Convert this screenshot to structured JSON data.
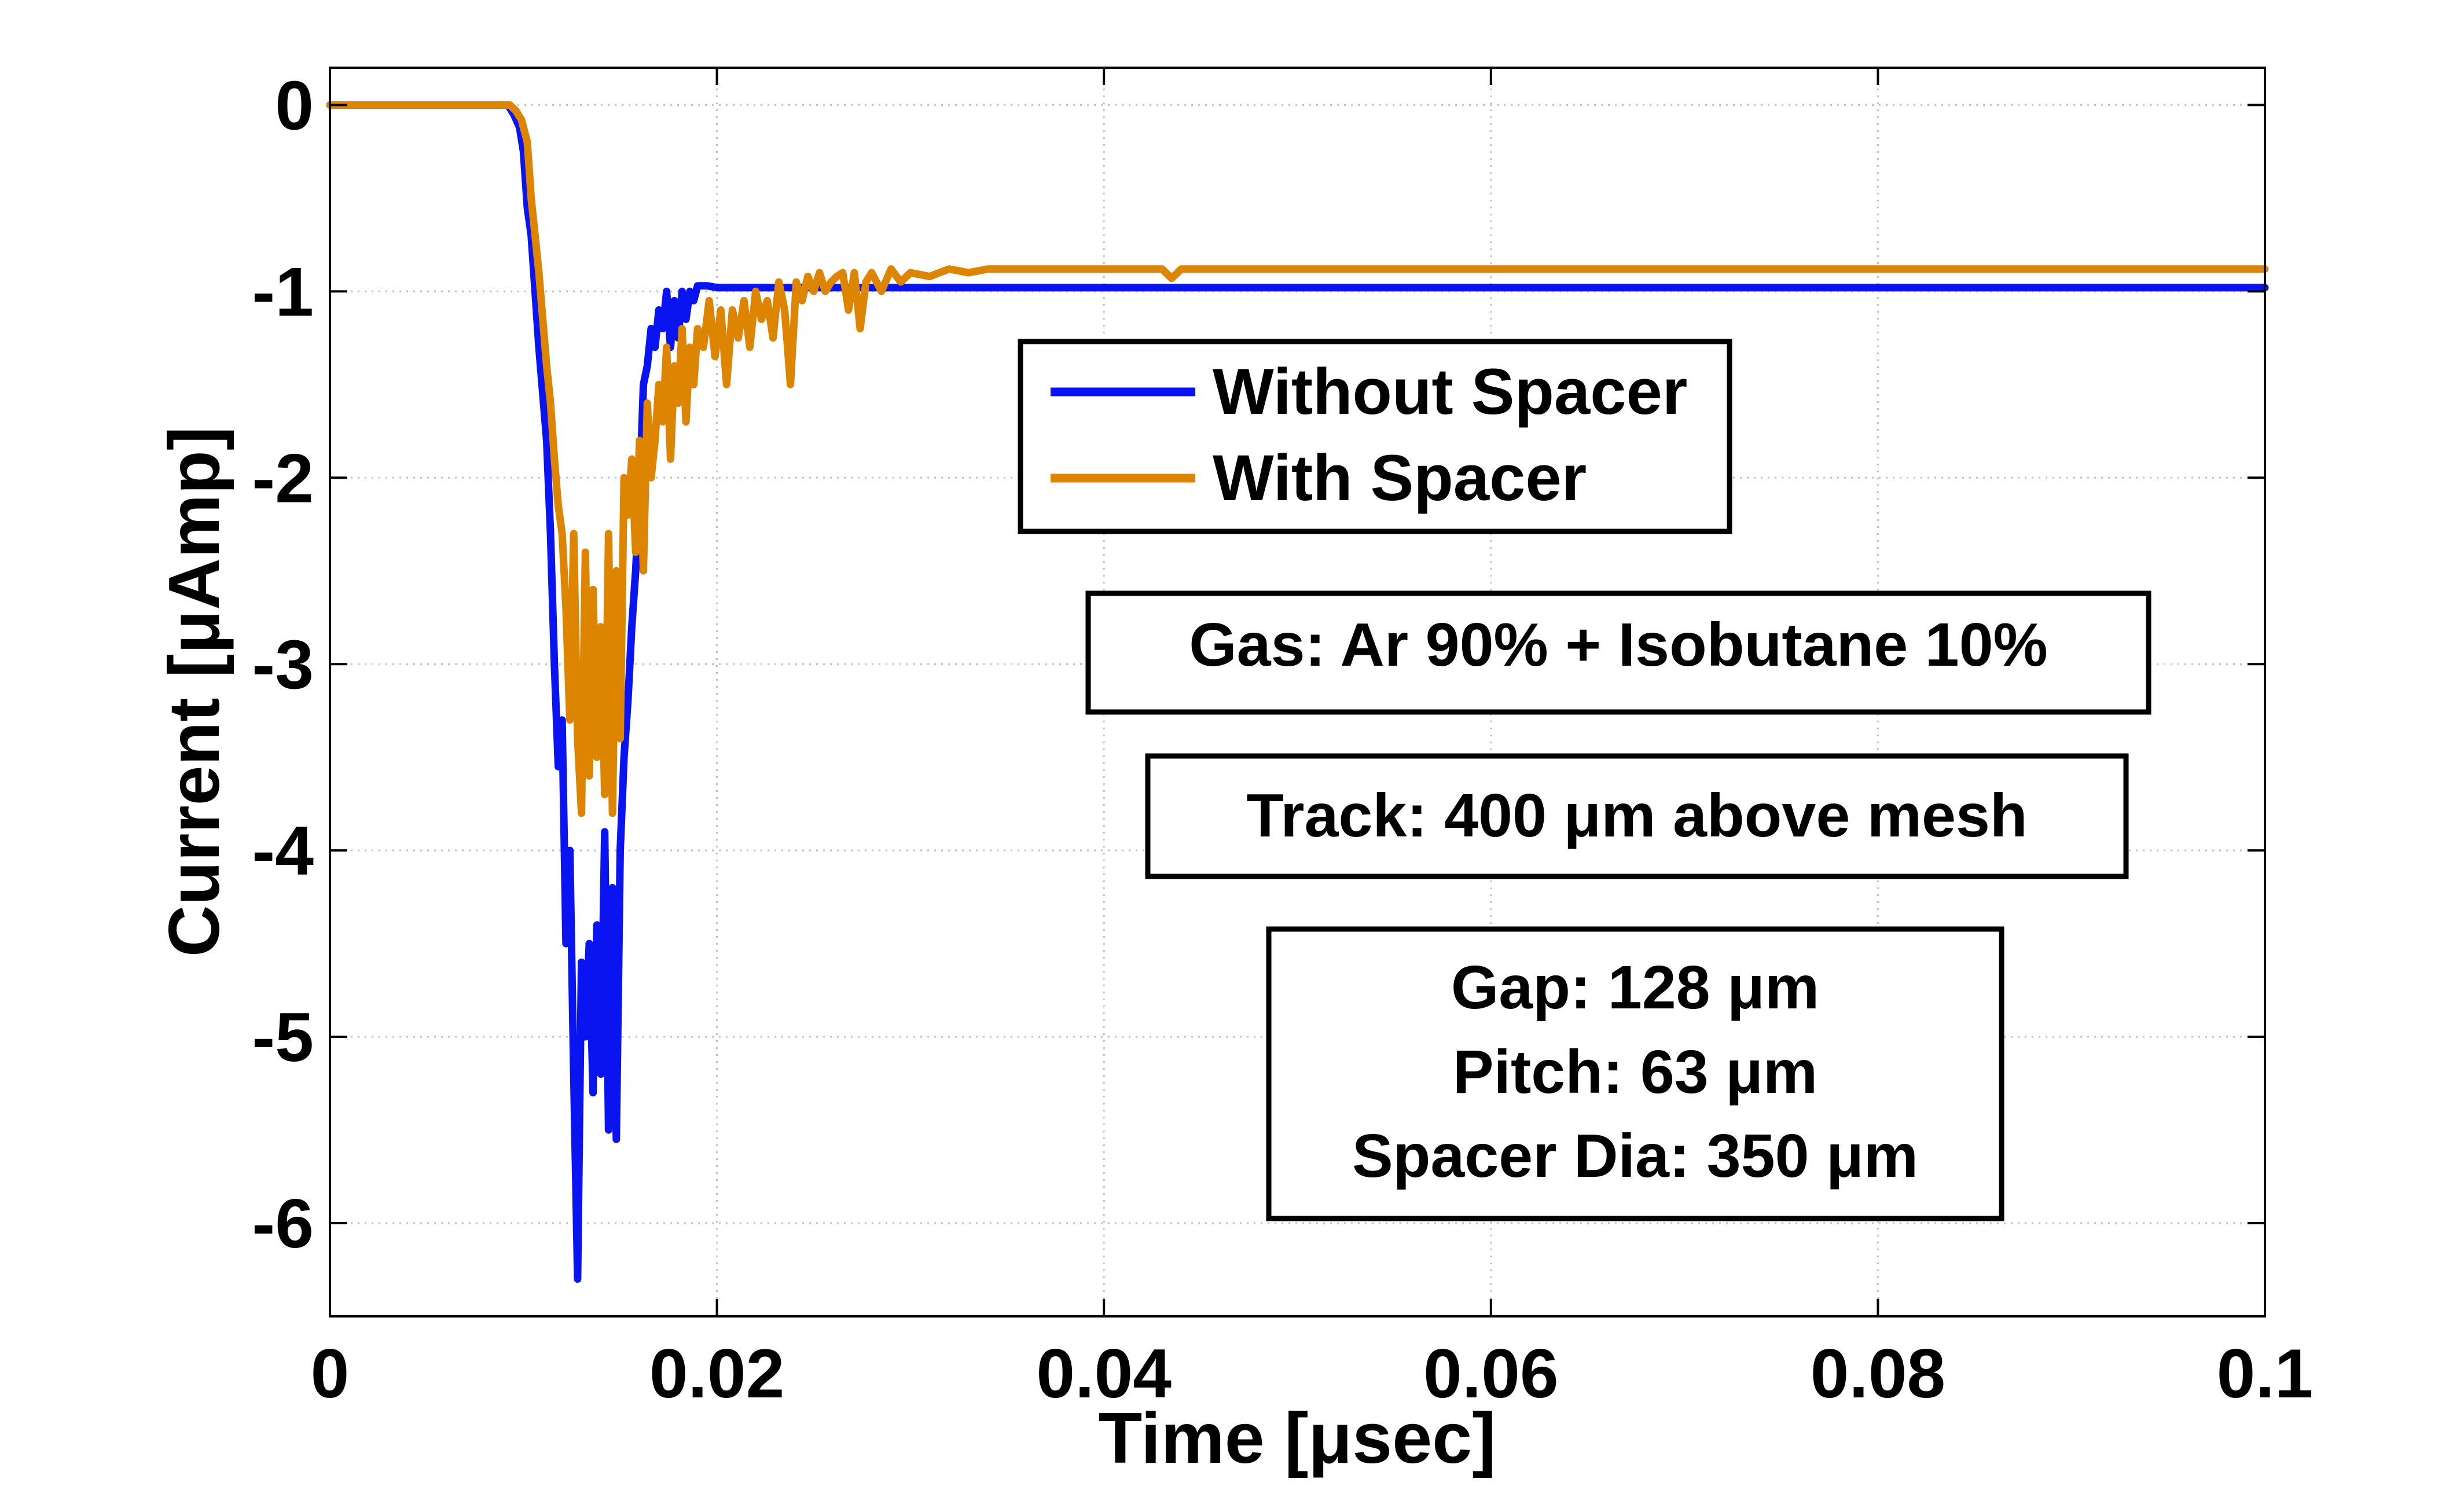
{
  "chart_data": {
    "type": "line",
    "xlabel": "Time [μsec]",
    "ylabel": "Current [μAmp]",
    "xlim": [
      0,
      0.1
    ],
    "ylim": [
      -6.5,
      0.2
    ],
    "xticks": [
      0,
      0.02,
      0.04,
      0.06,
      0.08,
      0.1
    ],
    "xtick_labels": [
      "0",
      "0.02",
      "0.04",
      "0.06",
      "0.08",
      "0.1"
    ],
    "yticks": [
      0,
      -1,
      -2,
      -3,
      -4,
      -5,
      -6
    ],
    "ytick_labels": [
      "0",
      "-1",
      "-2",
      "-3",
      "-4",
      "-5",
      "-6"
    ],
    "grid": true,
    "legend_position": "upper-center",
    "series": [
      {
        "name": "Without Spacer",
        "color": "#0a14f0",
        "x": [
          0,
          0.0092,
          0.0095,
          0.0098,
          0.01,
          0.0102,
          0.0104,
          0.0106,
          0.0108,
          0.011,
          0.0112,
          0.0114,
          0.0116,
          0.0118,
          0.012,
          0.0122,
          0.0124,
          0.0126,
          0.0128,
          0.013,
          0.0132,
          0.0134,
          0.0136,
          0.0138,
          0.014,
          0.0142,
          0.0144,
          0.0146,
          0.0148,
          0.015,
          0.0152,
          0.0154,
          0.0156,
          0.0158,
          0.016,
          0.0162,
          0.0164,
          0.0166,
          0.0168,
          0.017,
          0.0172,
          0.0174,
          0.0176,
          0.0178,
          0.018,
          0.0182,
          0.0184,
          0.0186,
          0.0188,
          0.019,
          0.0195,
          0.02,
          0.025,
          0.03,
          0.04,
          0.06,
          0.08,
          0.1
        ],
        "y": [
          0,
          0,
          -0.05,
          -0.12,
          -0.25,
          -0.55,
          -0.7,
          -1.0,
          -1.3,
          -1.55,
          -1.8,
          -2.3,
          -3.0,
          -3.55,
          -3.3,
          -4.5,
          -4.0,
          -5.2,
          -6.3,
          -4.6,
          -5.0,
          -4.5,
          -5.3,
          -4.4,
          -5.2,
          -3.9,
          -5.5,
          -4.2,
          -5.55,
          -4.0,
          -3.5,
          -3.2,
          -2.8,
          -2.5,
          -2.1,
          -1.5,
          -1.4,
          -1.2,
          -1.3,
          -1.1,
          -1.2,
          -1.0,
          -1.3,
          -1.05,
          -1.25,
          -1.0,
          -1.15,
          -1.0,
          -1.05,
          -0.97,
          -0.97,
          -0.98,
          -0.98,
          -0.98,
          -0.98,
          -0.98,
          -0.98,
          -0.98
        ]
      },
      {
        "name": "With Spacer",
        "color": "#dd8400",
        "x": [
          0,
          0.0093,
          0.0096,
          0.0099,
          0.0102,
          0.0104,
          0.0106,
          0.0108,
          0.011,
          0.0112,
          0.0114,
          0.0116,
          0.0118,
          0.012,
          0.0122,
          0.0124,
          0.0126,
          0.0128,
          0.013,
          0.0132,
          0.0134,
          0.0136,
          0.0138,
          0.014,
          0.0142,
          0.0144,
          0.0146,
          0.0148,
          0.015,
          0.0152,
          0.0154,
          0.0156,
          0.0158,
          0.016,
          0.0162,
          0.0164,
          0.0166,
          0.0168,
          0.017,
          0.0172,
          0.0174,
          0.0176,
          0.0178,
          0.018,
          0.0182,
          0.0184,
          0.0186,
          0.0188,
          0.019,
          0.0193,
          0.0196,
          0.0199,
          0.0202,
          0.0205,
          0.0208,
          0.0211,
          0.0214,
          0.0217,
          0.022,
          0.0223,
          0.0226,
          0.0229,
          0.0232,
          0.0235,
          0.0238,
          0.0241,
          0.0244,
          0.0247,
          0.025,
          0.0253,
          0.0256,
          0.0259,
          0.0262,
          0.0265,
          0.0268,
          0.0271,
          0.0274,
          0.0277,
          0.028,
          0.0285,
          0.029,
          0.0295,
          0.03,
          0.031,
          0.032,
          0.033,
          0.034,
          0.035,
          0.04,
          0.043,
          0.0435,
          0.044,
          0.06,
          0.08,
          0.1
        ],
        "y": [
          0,
          0,
          -0.03,
          -0.08,
          -0.2,
          -0.5,
          -0.7,
          -0.9,
          -1.15,
          -1.4,
          -1.6,
          -1.9,
          -2.15,
          -2.3,
          -2.7,
          -3.3,
          -2.3,
          -3.4,
          -3.8,
          -2.4,
          -3.6,
          -2.6,
          -3.5,
          -2.8,
          -3.7,
          -2.3,
          -3.8,
          -2.5,
          -3.4,
          -2.0,
          -2.2,
          -1.9,
          -2.4,
          -1.8,
          -2.5,
          -1.6,
          -2.0,
          -1.8,
          -1.5,
          -1.7,
          -1.3,
          -1.9,
          -1.4,
          -1.6,
          -1.2,
          -1.7,
          -1.3,
          -1.5,
          -1.2,
          -1.3,
          -1.05,
          -1.35,
          -1.1,
          -1.5,
          -1.1,
          -1.25,
          -1.05,
          -1.3,
          -1.0,
          -1.15,
          -1.05,
          -1.25,
          -0.95,
          -1.1,
          -1.5,
          -0.95,
          -1.05,
          -0.92,
          -1.0,
          -0.9,
          -1.0,
          -0.95,
          -0.92,
          -0.9,
          -1.1,
          -0.9,
          -1.2,
          -0.95,
          -0.9,
          -1.0,
          -0.88,
          -0.95,
          -0.9,
          -0.92,
          -0.88,
          -0.9,
          -0.88,
          -0.88,
          -0.88,
          -0.88,
          -0.93,
          -0.88,
          -0.88,
          -0.88,
          -0.88
        ]
      }
    ],
    "annotations": [
      {
        "name": "gas-box",
        "lines": [
          "Gas: Ar 90% + Isobutane 10%"
        ]
      },
      {
        "name": "track-box",
        "lines": [
          "Track: 400 μm above mesh"
        ]
      },
      {
        "name": "geometry-box",
        "lines": [
          "Gap: 128 μm",
          "Pitch: 63 μm",
          "Spacer Dia: 350 μm"
        ]
      }
    ]
  }
}
